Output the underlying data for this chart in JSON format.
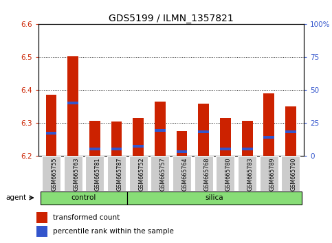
{
  "title": "GDS5199 / ILMN_1357821",
  "samples": [
    "GSM665755",
    "GSM665763",
    "GSM665781",
    "GSM665787",
    "GSM665752",
    "GSM665757",
    "GSM665764",
    "GSM665768",
    "GSM665780",
    "GSM665783",
    "GSM665789",
    "GSM665790"
  ],
  "groups": [
    "control",
    "control",
    "control",
    "control",
    "silica",
    "silica",
    "silica",
    "silica",
    "silica",
    "silica",
    "silica",
    "silica"
  ],
  "transformed_count": [
    6.385,
    6.502,
    6.305,
    6.303,
    6.315,
    6.365,
    6.275,
    6.358,
    6.315,
    6.305,
    6.39,
    6.35
  ],
  "percentile_rank": [
    17,
    40,
    5,
    5,
    7,
    19,
    3,
    18,
    5,
    5,
    14,
    18
  ],
  "baseline": 6.2,
  "ylim": [
    6.2,
    6.6
  ],
  "y2lim": [
    0,
    100
  ],
  "bar_width": 0.5,
  "red_color": "#cc2200",
  "blue_color": "#3355cc",
  "control_label": "control",
  "silica_label": "silica",
  "agent_label": "agent",
  "legend_red": "transformed count",
  "legend_blue": "percentile rank within the sample",
  "title_fontsize": 10,
  "green_color": "#88dd77",
  "grey_tick_bg": "#cccccc"
}
